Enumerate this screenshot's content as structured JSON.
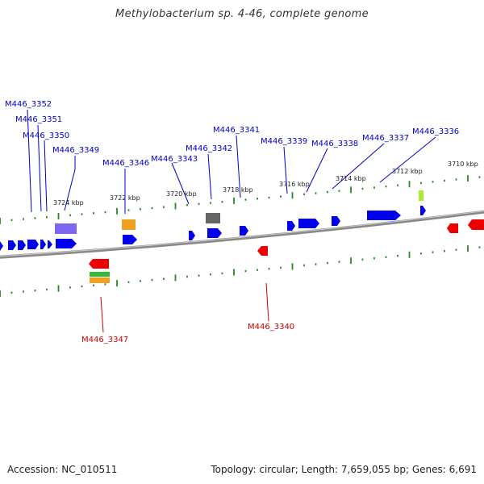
{
  "title": "Methylobacterium sp. 4-46, complete genome",
  "footer": {
    "accession": "Accession: NC_010511",
    "summary": "Topology: circular; Length: 7,659,055 bp; Genes: 6,691"
  },
  "scale_labels": [
    "3724 kbp",
    "3722 kbp",
    "3720 kbp",
    "3718 kbp",
    "3716 kbp",
    "3714 kbp",
    "3712 kbp",
    "3710 kbp"
  ],
  "forward_gene_labels": [
    "M446_3352",
    "M446_3351",
    "M446_3350",
    "M446_3349",
    "M446_3346",
    "M446_3343",
    "M446_3342",
    "M446_3341",
    "M446_3339",
    "M446_3338",
    "M446_3337",
    "M446_3336"
  ],
  "reverse_gene_labels": [
    "M446_3347",
    "M446_3340"
  ],
  "colors": {
    "forward_cds": "#0000ee",
    "reverse_cds": "#ee0000",
    "tick": "#228b22",
    "backbone": "#777777",
    "label_forward": "#0000cc",
    "label_reverse": "#cc0000",
    "cog_purple": "#7b68ee",
    "cog_orange": "#f0a020",
    "cog_grey": "#666666",
    "cog_lime": "#aaee33",
    "cog_green": "#33bb33"
  }
}
